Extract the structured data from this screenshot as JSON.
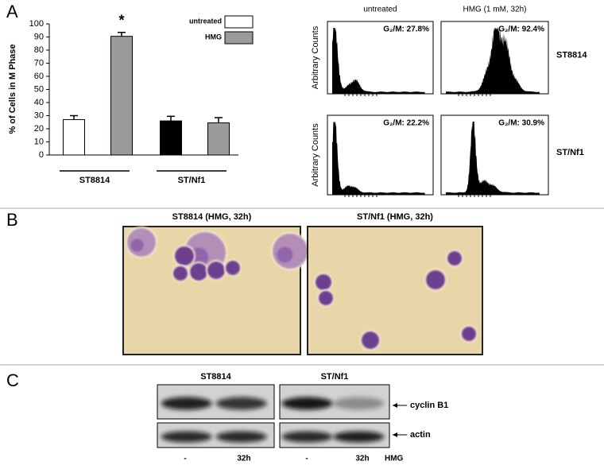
{
  "panel_labels": [
    "A",
    "B",
    "C"
  ],
  "chart_data": {
    "type": "bar",
    "y_label": "% of Cells in M Phase",
    "annotation": "*",
    "categories": [
      "ST8814",
      "ST/Nf1"
    ],
    "series": [
      {
        "name": "untreated",
        "color": "#ffffff",
        "colors": [
          "#ffffff",
          "#000000"
        ],
        "values": [
          27,
          26
        ],
        "errors": [
          3,
          3.5
        ]
      },
      {
        "name": "HMG",
        "color": "#999c99",
        "values": [
          90.5,
          24.5
        ],
        "errors": [
          3,
          4
        ]
      }
    ],
    "ylim": [
      0,
      100
    ],
    "yticks": [
      0,
      10,
      20,
      30,
      40,
      50,
      60,
      70,
      80,
      90,
      100
    ]
  },
  "histograms": {
    "columns": [
      "untreated",
      "HMG (1 mM, 32h)"
    ],
    "y_label": "Arbitrary Counts",
    "rows": [
      {
        "name": "ST8814",
        "labels": [
          "G₂/M: 27.8%",
          "G₂/M: 92.4%"
        ]
      },
      {
        "name": "ST/Nf1",
        "labels": [
          "G₂/M: 22.2%",
          "G₂/M: 30.9%"
        ]
      }
    ]
  },
  "micrographs": {
    "titles": [
      "ST8814 (HMG, 32h)",
      "ST/Nf1 (HMG, 32h)"
    ]
  },
  "blot": {
    "lines": [
      "ST8814",
      "ST/Nf1"
    ],
    "bands": [
      "cyclin B1",
      "actin"
    ],
    "lanes": [
      "-",
      "32h",
      "-",
      "32h"
    ],
    "treatment": "HMG"
  }
}
